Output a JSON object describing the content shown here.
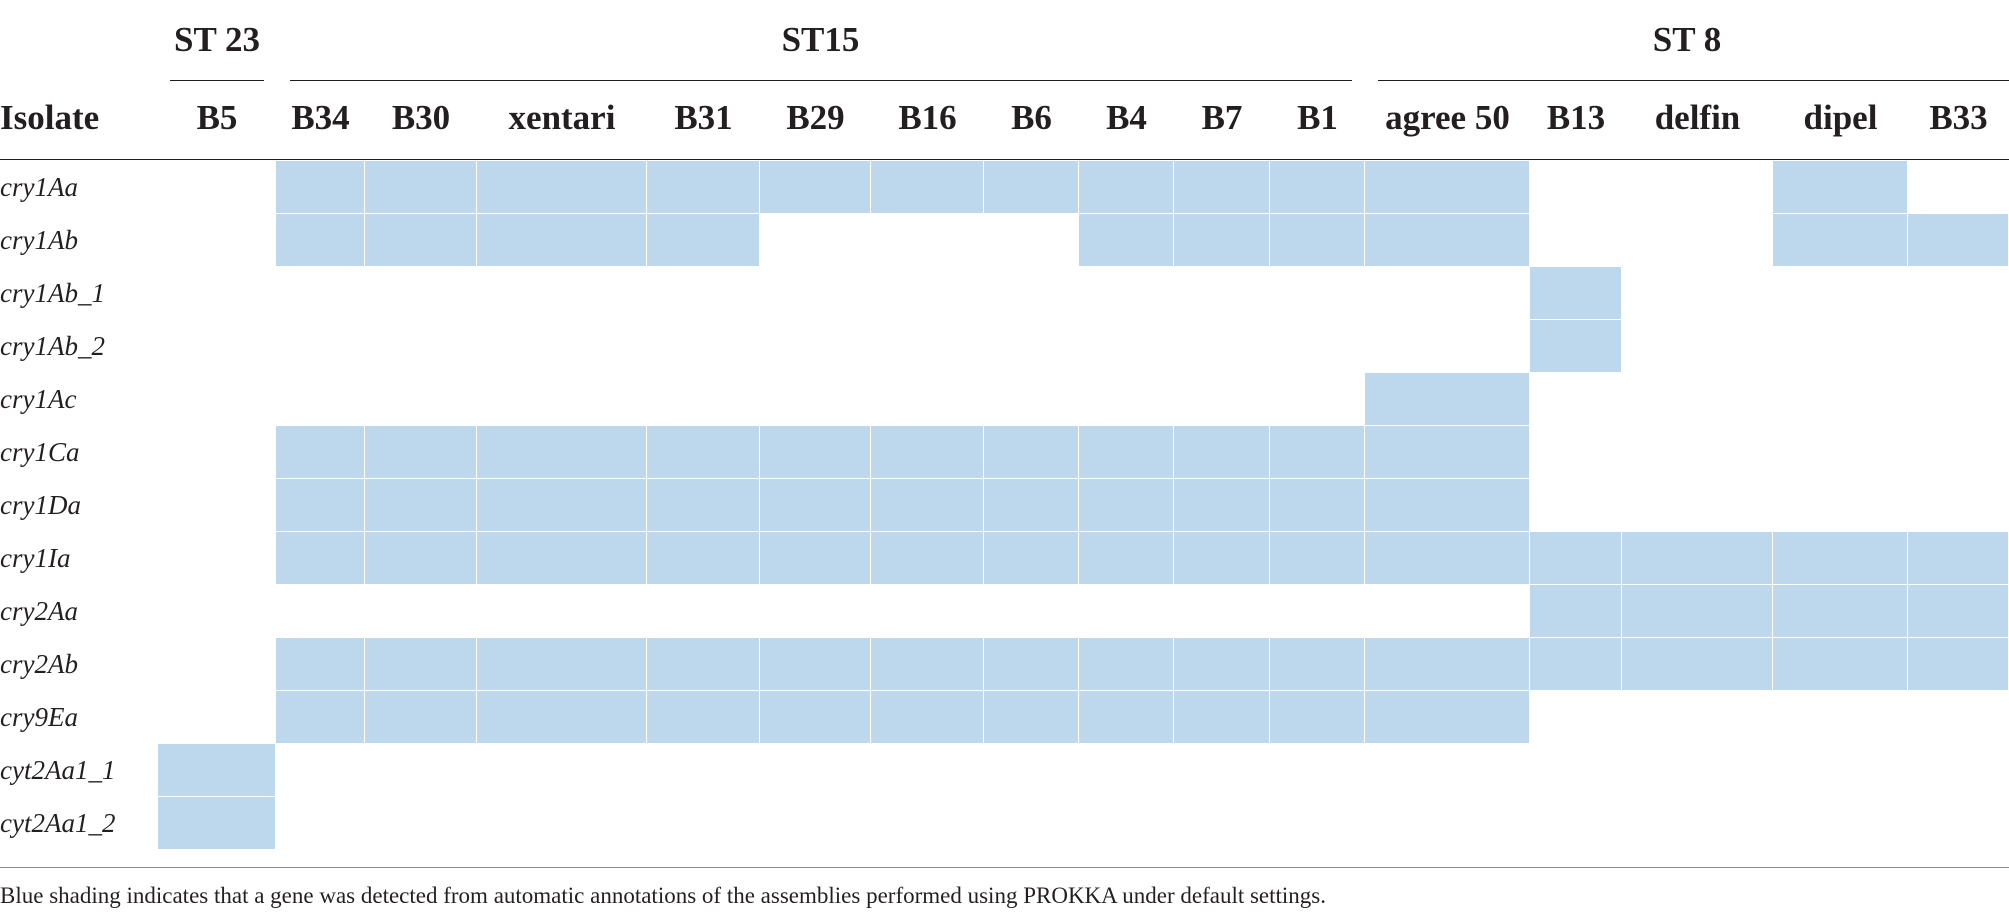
{
  "table": {
    "row_header": "Isolate",
    "groups": [
      {
        "label": "ST 23",
        "columns": [
          "B5"
        ]
      },
      {
        "label": "ST15",
        "columns": [
          "B34",
          "B30",
          "xentari",
          "B31",
          "B29",
          "B16",
          "B6",
          "B4",
          "B7",
          "B1"
        ]
      },
      {
        "label": "ST 8",
        "columns": [
          "agree 50",
          "B13",
          "delfin",
          "dipel",
          "B33"
        ]
      }
    ],
    "columns": [
      "B5",
      "B34",
      "B30",
      "xentari",
      "B31",
      "B29",
      "B16",
      "B6",
      "B4",
      "B7",
      "B1",
      "agree 50",
      "B13",
      "delfin",
      "dipel",
      "B33"
    ],
    "rows": [
      {
        "gene": "cry1Aa",
        "detected": [
          0,
          1,
          1,
          1,
          1,
          1,
          1,
          1,
          1,
          1,
          1,
          1,
          0,
          0,
          1,
          0
        ]
      },
      {
        "gene": "cry1Ab",
        "detected": [
          0,
          1,
          1,
          1,
          1,
          0,
          0,
          0,
          1,
          1,
          1,
          1,
          0,
          0,
          1,
          1
        ]
      },
      {
        "gene": "cry1Ab_1",
        "detected": [
          0,
          0,
          0,
          0,
          0,
          0,
          0,
          0,
          0,
          0,
          0,
          0,
          1,
          0,
          0,
          0
        ]
      },
      {
        "gene": "cry1Ab_2",
        "detected": [
          0,
          0,
          0,
          0,
          0,
          0,
          0,
          0,
          0,
          0,
          0,
          0,
          1,
          0,
          0,
          0
        ]
      },
      {
        "gene": "cry1Ac",
        "detected": [
          0,
          0,
          0,
          0,
          0,
          0,
          0,
          0,
          0,
          0,
          0,
          1,
          0,
          0,
          0,
          0
        ]
      },
      {
        "gene": "cry1Ca",
        "detected": [
          0,
          1,
          1,
          1,
          1,
          1,
          1,
          1,
          1,
          1,
          1,
          1,
          0,
          0,
          0,
          0
        ]
      },
      {
        "gene": "cry1Da",
        "detected": [
          0,
          1,
          1,
          1,
          1,
          1,
          1,
          1,
          1,
          1,
          1,
          1,
          0,
          0,
          0,
          0
        ]
      },
      {
        "gene": "cry1Ia",
        "detected": [
          0,
          1,
          1,
          1,
          1,
          1,
          1,
          1,
          1,
          1,
          1,
          1,
          1,
          1,
          1,
          1
        ]
      },
      {
        "gene": "cry2Aa",
        "detected": [
          0,
          0,
          0,
          0,
          0,
          0,
          0,
          0,
          0,
          0,
          0,
          0,
          1,
          1,
          1,
          1
        ]
      },
      {
        "gene": "cry2Ab",
        "detected": [
          0,
          1,
          1,
          1,
          1,
          1,
          1,
          1,
          1,
          1,
          1,
          1,
          1,
          1,
          1,
          1
        ]
      },
      {
        "gene": "cry9Ea",
        "detected": [
          0,
          1,
          1,
          1,
          1,
          1,
          1,
          1,
          1,
          1,
          1,
          1,
          0,
          0,
          0,
          0
        ]
      },
      {
        "gene": "cyt2Aa1_1",
        "detected": [
          1,
          0,
          0,
          0,
          0,
          0,
          0,
          0,
          0,
          0,
          0,
          0,
          0,
          0,
          0,
          0
        ]
      },
      {
        "gene": "cyt2Aa1_2",
        "detected": [
          1,
          0,
          0,
          0,
          0,
          0,
          0,
          0,
          0,
          0,
          0,
          0,
          0,
          0,
          0,
          0
        ]
      }
    ],
    "highlight_color": "#bdd7ed"
  },
  "footnote": "Blue shading indicates that a gene was detected from automatic annotations of the assemblies performed using PROKKA under default settings."
}
